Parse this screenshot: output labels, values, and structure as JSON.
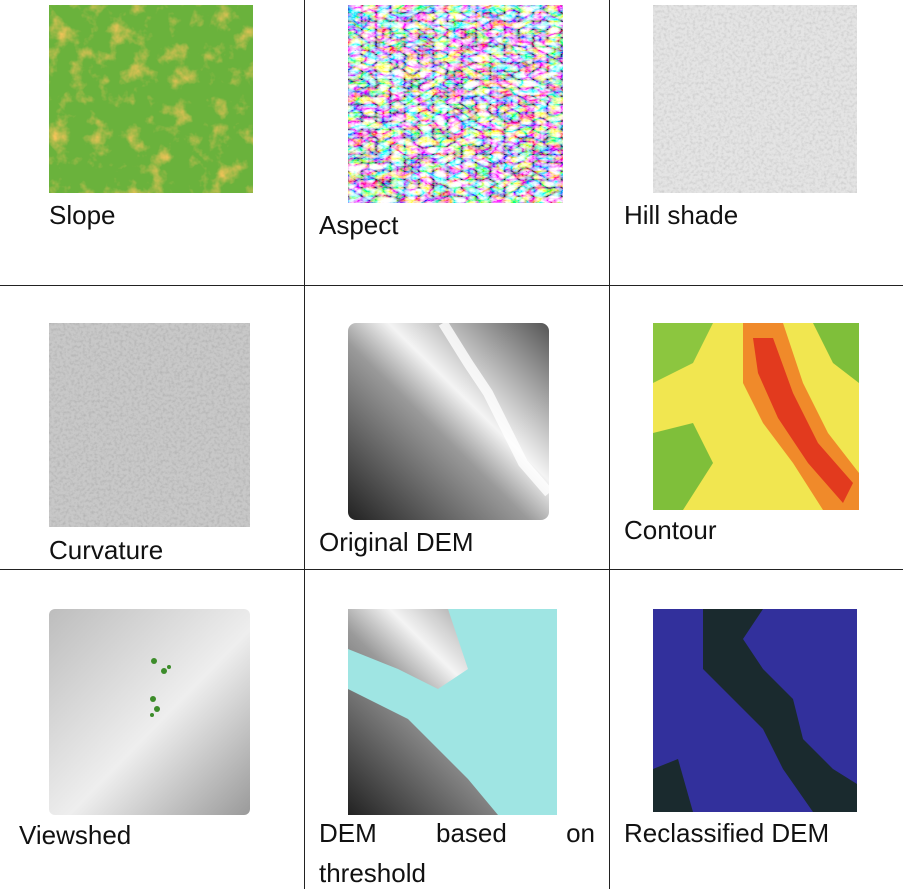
{
  "cells": [
    {
      "label": "Slope"
    },
    {
      "label": "Aspect"
    },
    {
      "label": "Hill shade"
    },
    {
      "label": "Curvature"
    },
    {
      "label": "Original DEM"
    },
    {
      "label": "Contour"
    },
    {
      "label": "Viewshed"
    },
    {
      "label": "DEM based on threshold"
    },
    {
      "label": "Reclassified DEM"
    }
  ]
}
